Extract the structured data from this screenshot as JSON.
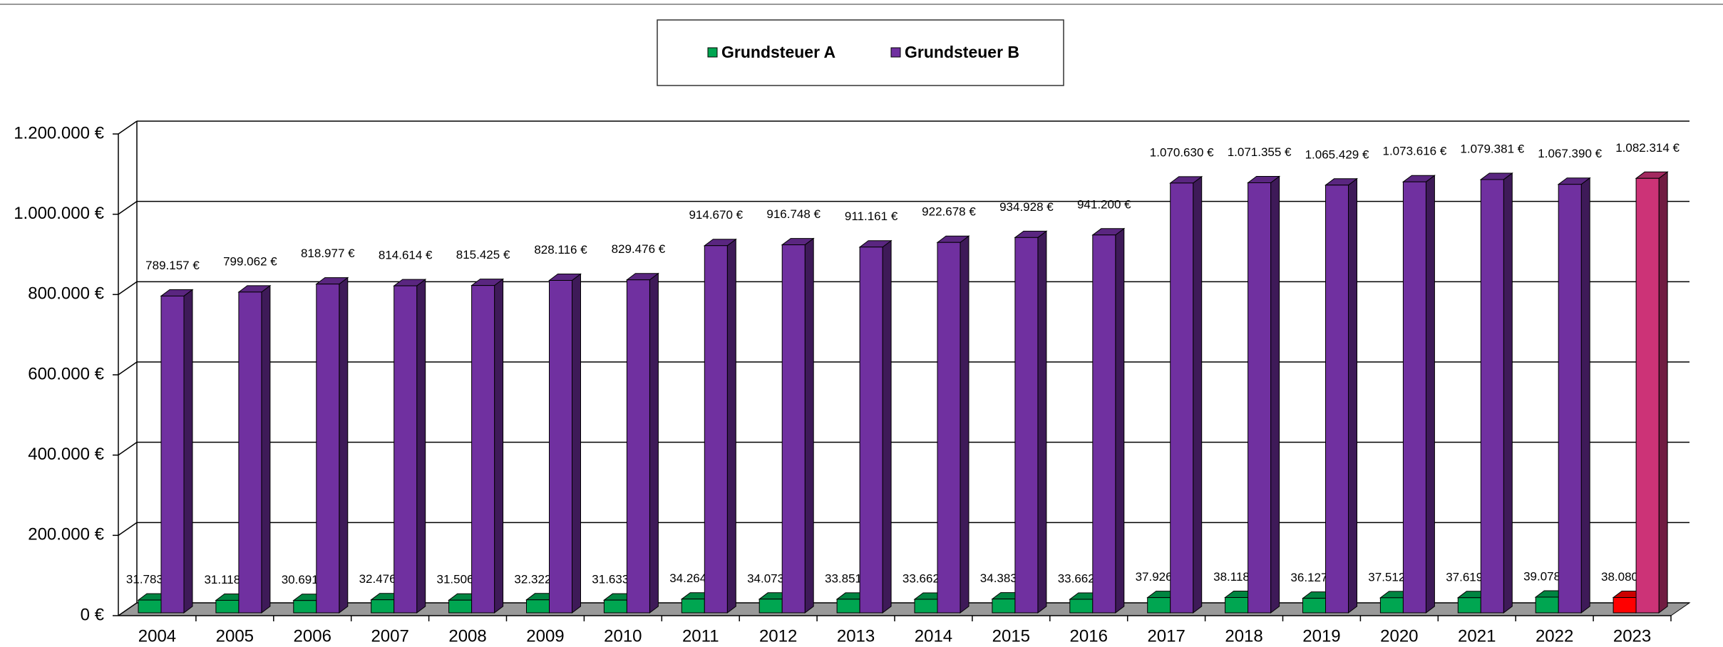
{
  "chart_data": {
    "type": "bar3d",
    "categories": [
      "2004",
      "2005",
      "2006",
      "2007",
      "2008",
      "2009",
      "2010",
      "2011",
      "2012",
      "2013",
      "2014",
      "2015",
      "2016",
      "2017",
      "2018",
      "2019",
      "2020",
      "2021",
      "2022",
      "2023"
    ],
    "series": [
      {
        "name": "Grundsteuer A",
        "color": "#00a651",
        "colors": [
          "#00a651",
          "#00a651",
          "#00a651",
          "#00a651",
          "#00a651",
          "#00a651",
          "#00a651",
          "#00a651",
          "#00a651",
          "#00a651",
          "#00a651",
          "#00a651",
          "#00a651",
          "#00a651",
          "#00a651",
          "#00a651",
          "#00a651",
          "#00a651",
          "#00a651",
          "#ff0000"
        ],
        "values": [
          31783,
          31118,
          30691,
          32476,
          31506,
          32322,
          31633,
          34264,
          34073,
          33851,
          33662,
          34383,
          33662,
          37926,
          38118,
          36127,
          37512,
          37619,
          39078,
          38080
        ],
        "value_labels": [
          "31.783 €",
          "31.118 €",
          "30.691 €",
          "32.476 €",
          "31.506 €",
          "32.322 €",
          "31.633 €",
          "34.264 €",
          "34.073 €",
          "33.851 €",
          "33.662 €",
          "34.383 €",
          "33.662 €",
          "37.926 €",
          "38.118 €",
          "36.127 €",
          "37.512 €",
          "37.619 €",
          "39.078 €",
          "38.080 €"
        ]
      },
      {
        "name": "Grundsteuer B",
        "color": "#7030a0",
        "colors": [
          "#7030a0",
          "#7030a0",
          "#7030a0",
          "#7030a0",
          "#7030a0",
          "#7030a0",
          "#7030a0",
          "#7030a0",
          "#7030a0",
          "#7030a0",
          "#7030a0",
          "#7030a0",
          "#7030a0",
          "#7030a0",
          "#7030a0",
          "#7030a0",
          "#7030a0",
          "#7030a0",
          "#7030a0",
          "#cc3377"
        ],
        "values": [
          789157,
          799062,
          818977,
          814614,
          815425,
          828116,
          829476,
          914670,
          916748,
          911161,
          922678,
          934928,
          941200,
          1070630,
          1071355,
          1065429,
          1073616,
          1079381,
          1067390,
          1082314
        ],
        "value_labels": [
          "789.157 €",
          "799.062 €",
          "818.977 €",
          "814.614 €",
          "815.425 €",
          "828.116 €",
          "829.476 €",
          "914.670 €",
          "916.748 €",
          "911.161 €",
          "922.678 €",
          "934.928 €",
          "941.200 €",
          "1.070.630 €",
          "1.071.355 €",
          "1.065.429 €",
          "1.073.616 €",
          "1.079.381 €",
          "1.067.390 €",
          "1.082.314 €"
        ]
      }
    ],
    "ylim": [
      0,
      1200000
    ],
    "yticks": [
      {
        "value": 0,
        "label": "0 €"
      },
      {
        "value": 200000,
        "label": "200.000 €"
      },
      {
        "value": 400000,
        "label": "400.000 €"
      },
      {
        "value": 600000,
        "label": "600.000 €"
      },
      {
        "value": 800000,
        "label": "800.000 €"
      },
      {
        "value": 1000000,
        "label": "1.000.000 €"
      },
      {
        "value": 1200000,
        "label": "1.200.000 €"
      }
    ],
    "grid": true,
    "legend": "top"
  }
}
